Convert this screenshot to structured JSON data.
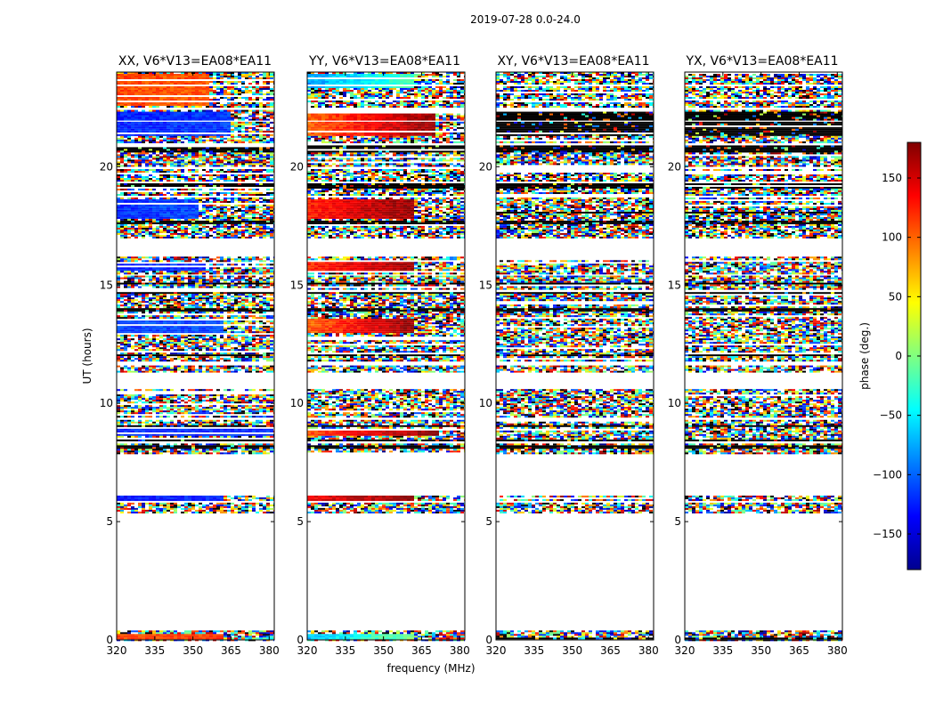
{
  "figure_title": "2019-07-28 0.0-24.0",
  "chart_data": {
    "type": "heatmap",
    "title": "2019-07-28 0.0-24.0",
    "xlabel": "frequency (MHz)",
    "ylabel": "UT (hours)",
    "xlim": [
      320,
      382
    ],
    "ylim": [
      0,
      24
    ],
    "xticks": [
      320,
      335,
      350,
      365,
      380
    ],
    "yticks": [
      0,
      5,
      10,
      15,
      20
    ],
    "colorbar": {
      "label": "phase (deg.)",
      "range": [
        -180,
        180
      ],
      "ticks": [
        150,
        100,
        50,
        0,
        -50,
        -100,
        -150
      ],
      "tick_labels": [
        "150",
        "100",
        "50",
        "0",
        "−50",
        "−100",
        "−150"
      ],
      "colormap": "jet"
    },
    "panels": [
      {
        "title": "XX, V6*V13=EA08*EA11",
        "coherent": [
          {
            "t0": 22.6,
            "t1": 23.9,
            "ph0": 110,
            "ph1": 105,
            "fcut": 357
          },
          {
            "t0": 21.3,
            "t1": 22.3,
            "ph0": -125,
            "ph1": -115,
            "fcut": 365
          },
          {
            "t0": 17.8,
            "t1": 18.6,
            "ph0": -120,
            "ph1": -110,
            "fcut": 352
          },
          {
            "t0": 15.6,
            "t1": 16.0,
            "ph0": -125,
            "ph1": -120,
            "fcut": 355
          },
          {
            "t0": 13.0,
            "t1": 13.6,
            "ph0": -115,
            "ph1": -110,
            "fcut": 362
          },
          {
            "t0": 8.6,
            "t1": 8.9,
            "ph0": -125,
            "ph1": -120,
            "fcut": 382
          },
          {
            "t0": 5.9,
            "t1": 6.2,
            "ph0": -130,
            "ph1": -125,
            "fcut": 362
          },
          {
            "t0": 0.0,
            "t1": 0.25,
            "ph0": 110,
            "ph1": 115,
            "fcut": 362
          }
        ]
      },
      {
        "title": "YY, V6*V13=EA08*EA11",
        "coherent": [
          {
            "t0": 23.3,
            "t1": 23.9,
            "ph0": -80,
            "ph1": -20,
            "fcut": 362
          },
          {
            "t0": 21.3,
            "t1": 22.3,
            "ph0": 100,
            "ph1": 175,
            "fcut": 370
          },
          {
            "t0": 17.8,
            "t1": 18.6,
            "ph0": 125,
            "ph1": 175,
            "fcut": 362
          },
          {
            "t0": 15.6,
            "t1": 16.0,
            "ph0": 120,
            "ph1": 170,
            "fcut": 362
          },
          {
            "t0": 13.0,
            "t1": 13.6,
            "ph0": 100,
            "ph1": 175,
            "fcut": 362
          },
          {
            "t0": 8.6,
            "t1": 8.9,
            "ph0": 110,
            "ph1": 180,
            "fcut": 372
          },
          {
            "t0": 5.9,
            "t1": 6.2,
            "ph0": 140,
            "ph1": 175,
            "fcut": 362
          },
          {
            "t0": 0.0,
            "t1": 0.25,
            "ph0": -70,
            "ph1": 0,
            "fcut": 362
          }
        ]
      },
      {
        "title": "XY, V6*V13=EA08*EA11",
        "coherent": []
      },
      {
        "title": "YX, V6*V13=EA08*EA11",
        "coherent": []
      }
    ],
    "data_bands_hours": [
      [
        23.5,
        24.0
      ],
      [
        22.5,
        23.4
      ],
      [
        22.0,
        22.4
      ],
      [
        21.0,
        21.9
      ],
      [
        20.0,
        20.9
      ],
      [
        19.4,
        19.9
      ],
      [
        18.8,
        19.3
      ],
      [
        17.0,
        18.7
      ],
      [
        15.5,
        16.2
      ],
      [
        14.8,
        15.4
      ],
      [
        11.8,
        14.7
      ],
      [
        11.3,
        11.6
      ],
      [
        9.4,
        10.6
      ],
      [
        8.4,
        9.3
      ],
      [
        7.9,
        8.3
      ],
      [
        5.9,
        6.1
      ],
      [
        5.4,
        5.8
      ],
      [
        0.0,
        0.4
      ]
    ],
    "flagged_bands_hours": [
      [
        21.3,
        22.3
      ],
      [
        20.6,
        20.9
      ],
      [
        19.1,
        19.3
      ],
      [
        18.0,
        18.1
      ],
      [
        17.6,
        17.7
      ],
      [
        15.0,
        15.1
      ],
      [
        14.6,
        14.7
      ],
      [
        13.9,
        14.0
      ],
      [
        12.0,
        12.1
      ],
      [
        11.6,
        11.7
      ],
      [
        9.0,
        9.1
      ],
      [
        8.4,
        8.5
      ],
      [
        8.1,
        8.2
      ],
      [
        5.8,
        5.9
      ],
      [
        0.05,
        0.1
      ]
    ]
  }
}
